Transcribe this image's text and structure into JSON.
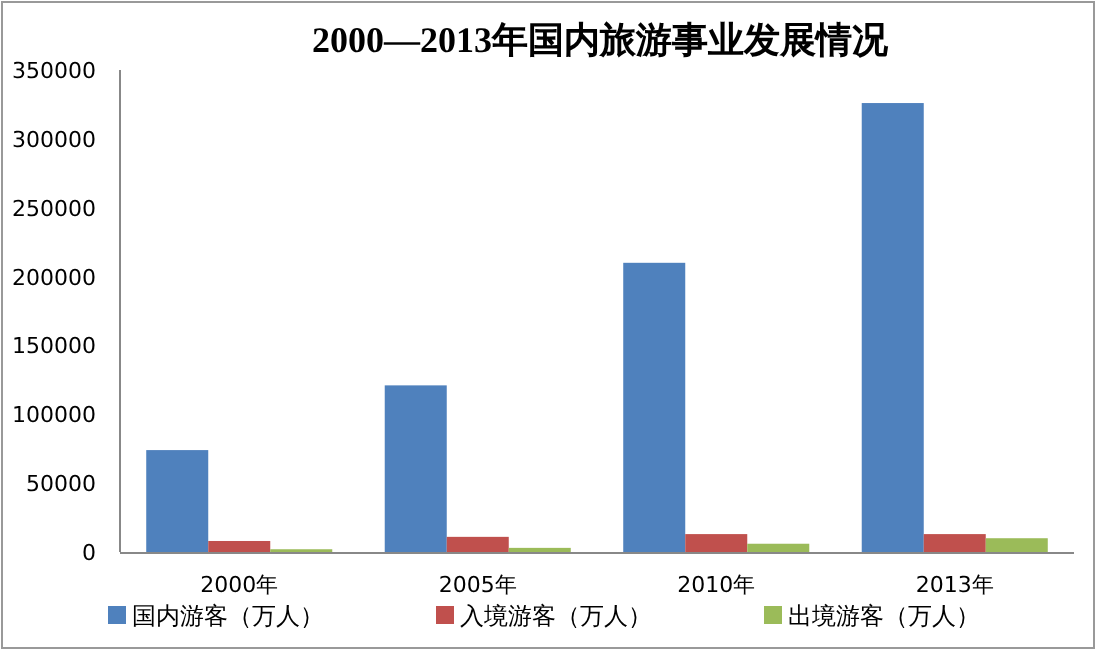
{
  "chart_data": {
    "type": "bar",
    "title": "2000—2013年国内旅游事业发展情况",
    "categories": [
      "2000年",
      "2005年",
      "2010年",
      "2013年"
    ],
    "series": [
      {
        "name": "国内游客（万人）",
        "color": "#4f81bd",
        "values": [
          74000,
          121000,
          210000,
          326000
        ]
      },
      {
        "name": "入境游客（万人）",
        "color": "#c0504d",
        "values": [
          8000,
          11000,
          13000,
          13000
        ]
      },
      {
        "name": "出境游客（万人）",
        "color": "#9bbb59",
        "values": [
          2000,
          3000,
          6000,
          10000
        ]
      }
    ],
    "ylim": [
      0,
      350000
    ],
    "yticks": [
      0,
      50000,
      100000,
      150000,
      200000,
      250000,
      300000,
      350000
    ],
    "grid": false,
    "legend": "bottom"
  }
}
